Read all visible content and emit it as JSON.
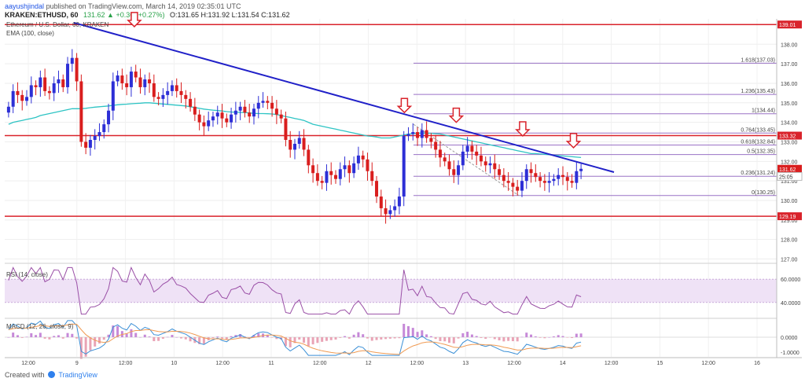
{
  "header": {
    "publisher": "aayushjindal",
    "published_text": "published on TradingView.com, March 14, 2019 02:35:01 UTC",
    "symbol": "KRAKEN:ETHUSD, 60",
    "change": "131.62 ▲ +0.36 (+0.27%)",
    "ohlc": "O:131.65 H:131.92 L:131.54 C:131.62"
  },
  "legend": {
    "series_title": "Ethereum / U.S. Dollar, 60, KRAKEN",
    "ema": "EMA (100, close)",
    "rsi": "RSI (14, close)",
    "macd": "MACD (12, 26, close, 9)"
  },
  "footer": {
    "created_with": "Created with",
    "brand": "TradingView"
  },
  "colors": {
    "up": "#2d2fd6",
    "down": "#d91e1e",
    "ema": "#2ec4c4",
    "trend": "#2020c8",
    "level": "#d9232b",
    "fib": "#9a72c6",
    "rsi": "#9a4fa6",
    "rsi_band": "#efe2f6",
    "macd": "#3a8fd6",
    "signal": "#f09a52",
    "hist_up": "#c689d8",
    "hist_down": "#e9a3b5"
  },
  "chart_data": [
    {
      "type": "candlestick",
      "title": "Ethereum / U.S. Dollar, 60, KRAKEN",
      "ylim": [
        126.9,
        139.3
      ],
      "y_ticks": [
        "138.00",
        "137.00",
        "136.00",
        "135.00",
        "134.00",
        "133.00",
        "132.00",
        "131.00",
        "130.00",
        "129.00",
        "128.00",
        "127.00"
      ],
      "x_labels": [
        "12:00",
        "9",
        "12:00",
        "10",
        "12:00",
        "11",
        "12:00",
        "12",
        "12:00",
        "13",
        "12:00",
        "14",
        "12:00",
        "15",
        "12:00",
        "16"
      ],
      "price_labels": [
        {
          "value": 139.01,
          "text": "139.01",
          "kind": "level"
        },
        {
          "value": 133.32,
          "text": "133.32",
          "kind": "level"
        },
        {
          "value": 131.62,
          "text": "131.62",
          "kind": "price"
        },
        {
          "value": 131.23,
          "text": "25:05",
          "kind": "timer"
        },
        {
          "value": 129.19,
          "text": "129.19",
          "kind": "level"
        }
      ],
      "horizontal_levels": [
        139.01,
        133.32,
        129.19
      ],
      "fibonacci": [
        {
          "ratio": "1.618",
          "value": 137.03,
          "label": "1.618(137.03)"
        },
        {
          "ratio": "1.236",
          "value": 135.43,
          "label": "1.236(135.43)"
        },
        {
          "ratio": "1",
          "value": 134.44,
          "label": "1(134.44)"
        },
        {
          "ratio": "0.764",
          "value": 133.45,
          "label": "0.764(133.45)"
        },
        {
          "ratio": "0.618",
          "value": 132.84,
          "label": "0.618(132.84)"
        },
        {
          "ratio": "0.5",
          "value": 132.35,
          "label": "0.5(132.35)"
        },
        {
          "ratio": "0.236",
          "value": 131.24,
          "label": "0.236(131.24)"
        },
        {
          "ratio": "0",
          "value": 130.25,
          "label": "0(130.25)"
        }
      ],
      "trendline": [
        {
          "t": 0.0,
          "v": 139.1
        },
        {
          "t": 1.0,
          "v": 131.45
        }
      ],
      "arrows": [
        {
          "t": 0.112,
          "v": 138.9
        },
        {
          "t": 0.612,
          "v": 134.5
        },
        {
          "t": 0.708,
          "v": 134.0
        },
        {
          "t": 0.831,
          "v": 133.3
        },
        {
          "t": 0.925,
          "v": 132.7
        }
      ],
      "candles_close": [
        134.8,
        135.6,
        135.4,
        135.1,
        135.3,
        135.9,
        135.8,
        136.3,
        135.6,
        135.5,
        136.0,
        136.2,
        135.8,
        137.0,
        137.3,
        136.1,
        133.0,
        132.7,
        133.1,
        133.3,
        133.5,
        133.9,
        134.6,
        136.1,
        136.4,
        136.0,
        135.8,
        136.6,
        136.3,
        135.8,
        136.2,
        136.0,
        135.3,
        135.2,
        135.4,
        135.6,
        135.9,
        135.6,
        135.4,
        135.2,
        134.8,
        134.4,
        134.0,
        133.8,
        134.1,
        134.3,
        134.5,
        134.2,
        134.0,
        134.4,
        134.6,
        134.8,
        134.5,
        134.3,
        134.7,
        135.0,
        135.1,
        135.0,
        134.7,
        134.4,
        134.2,
        133.1,
        132.6,
        132.9,
        133.2,
        132.6,
        131.8,
        131.4,
        131.0,
        130.9,
        131.5,
        131.3,
        131.1,
        131.6,
        131.8,
        131.4,
        131.9,
        132.3,
        132.1,
        131.5,
        131.0,
        130.2,
        129.6,
        129.3,
        129.5,
        129.7,
        130.2,
        133.3,
        133.4,
        133.5,
        133.2,
        133.6,
        133.2,
        133.0,
        132.6,
        132.2,
        132.0,
        131.6,
        131.3,
        131.8,
        132.5,
        132.8,
        132.5,
        132.3,
        132.0,
        131.8,
        131.9,
        131.6,
        131.3,
        131.0,
        130.9,
        130.7,
        130.5,
        131.0,
        131.6,
        131.4,
        131.2,
        131.0,
        130.9,
        131.0,
        131.1,
        131.3,
        131.2,
        131.0,
        130.9,
        131.5,
        131.62
      ],
      "ema_100": [
        133.9,
        134.0,
        134.05,
        134.1,
        134.15,
        134.2,
        134.25,
        134.35,
        134.4,
        134.45,
        134.5,
        134.55,
        134.6,
        134.65,
        134.7,
        134.7,
        134.7,
        134.72,
        134.75,
        134.78,
        134.8,
        134.82,
        134.84,
        134.87,
        134.9,
        134.92,
        134.93,
        134.95,
        134.97,
        134.98,
        135.0,
        135.0,
        134.98,
        134.96,
        134.94,
        134.92,
        134.9,
        134.88,
        134.86,
        134.84,
        134.8,
        134.76,
        134.72,
        134.68,
        134.65,
        134.62,
        134.6,
        134.58,
        134.55,
        134.53,
        134.52,
        134.51,
        134.5,
        134.48,
        134.46,
        134.45,
        134.45,
        134.44,
        134.43,
        134.4,
        134.35,
        134.3,
        134.25,
        134.2,
        134.15,
        134.1,
        134.0,
        133.9,
        133.85,
        133.8,
        133.75,
        133.7,
        133.65,
        133.6,
        133.55,
        133.5,
        133.45,
        133.4,
        133.35,
        133.3,
        133.28,
        133.25,
        133.2,
        133.2,
        133.2,
        133.25,
        133.3,
        133.35,
        133.4,
        133.42,
        133.44,
        133.45,
        133.45,
        133.44,
        133.42,
        133.4,
        133.35,
        133.3,
        133.25,
        133.2,
        133.15,
        133.1,
        133.05,
        133.0,
        132.95,
        132.9,
        132.85,
        132.8,
        132.75,
        132.7,
        132.65,
        132.6,
        132.55,
        132.5,
        132.45,
        132.4,
        132.4,
        132.38,
        132.36,
        132.34,
        132.32,
        132.3,
        132.28,
        132.26,
        132.24,
        132.22,
        132.2
      ],
      "rsi_ylim": [
        27,
        73
      ],
      "rsi_ticks": [
        "60.0000",
        "40.0000"
      ],
      "rsi_band": [
        40,
        60
      ],
      "macd_ylim": [
        -1.3,
        1.2
      ],
      "macd_ticks": [
        "0.0000",
        "-1.0000"
      ]
    }
  ]
}
